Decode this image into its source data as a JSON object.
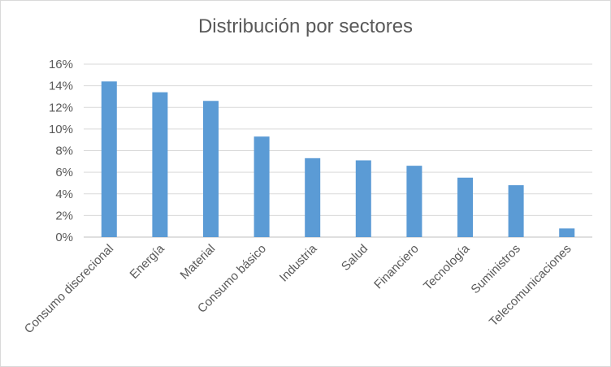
{
  "chart_data": {
    "type": "bar",
    "title": "Distribución por sectores",
    "xlabel": "",
    "ylabel": "",
    "ylim": [
      0,
      16
    ],
    "yticks": [
      "0%",
      "2%",
      "4%",
      "6%",
      "8%",
      "10%",
      "12%",
      "14%",
      "16%"
    ],
    "grid": true,
    "legend": "none",
    "bar_color": "#5b9bd5",
    "categories": [
      "Consumo discrecional",
      "Energía",
      "Material",
      "Consumo básico",
      "Industria",
      "Salud",
      "Financiero",
      "Tecnología",
      "Suministros",
      "Telecomunicaciones"
    ],
    "values": [
      14.4,
      13.4,
      12.6,
      9.3,
      7.3,
      7.1,
      6.6,
      5.5,
      4.8,
      0.8
    ]
  }
}
